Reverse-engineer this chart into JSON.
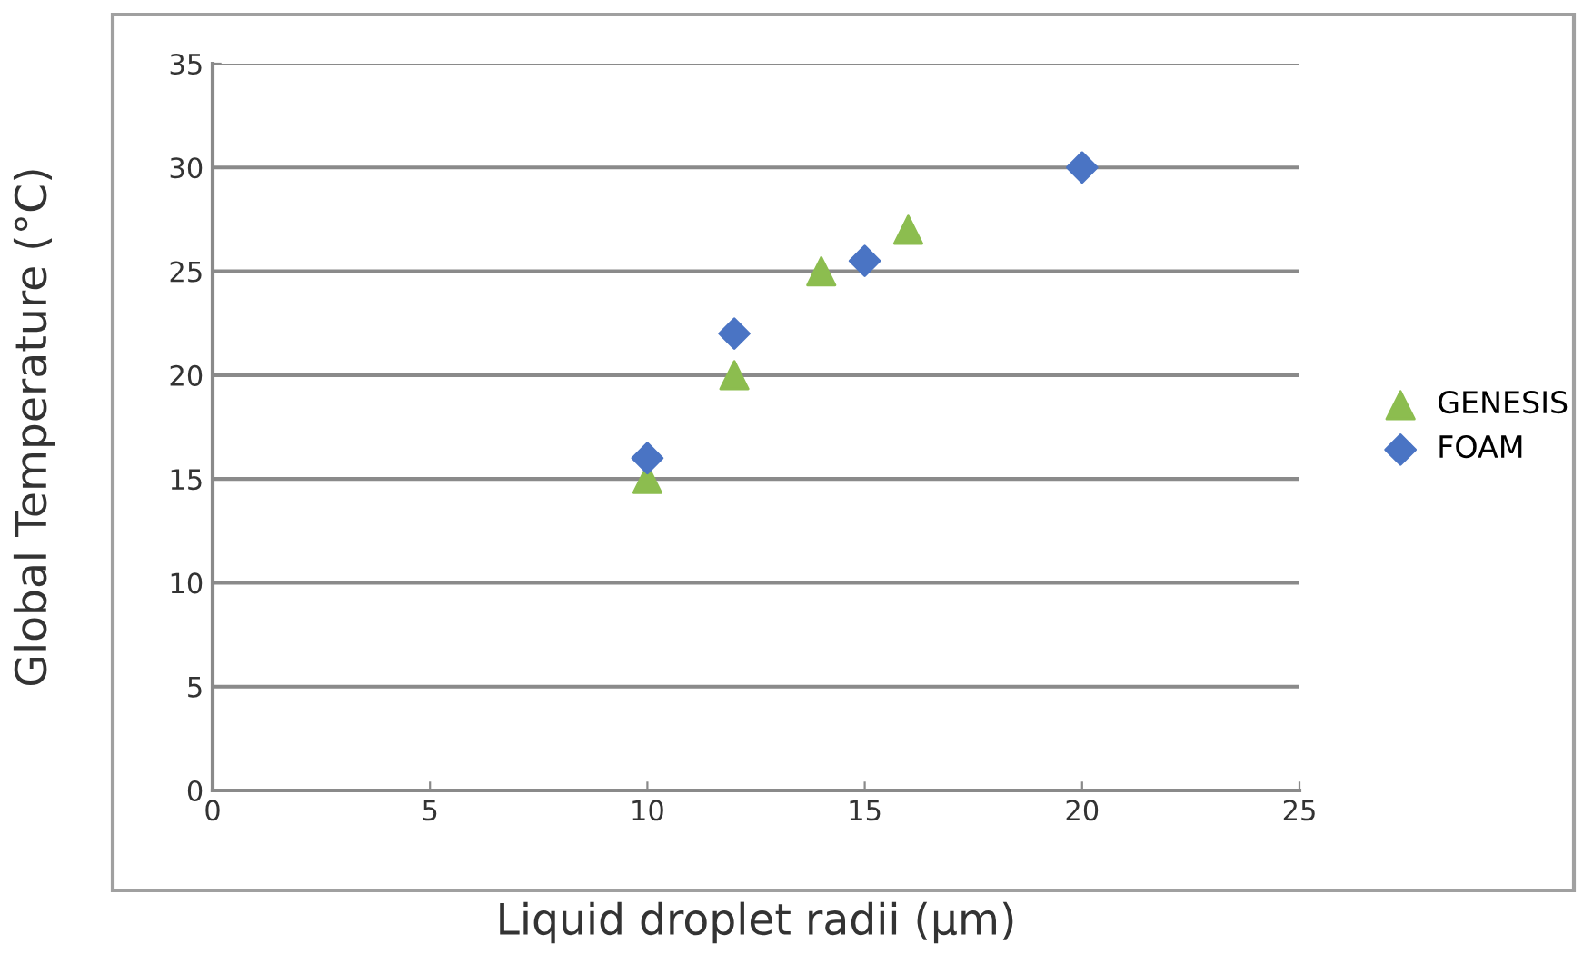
{
  "chart_data": {
    "type": "scatter",
    "xlabel": "Liquid droplet radii (µm)",
    "ylabel": "Global Temperature (°C)",
    "series": [
      {
        "name": "GENESIS",
        "color": "#8cbd4f",
        "marker": "triangle",
        "x": [
          10,
          12,
          14,
          16
        ],
        "values": [
          15,
          20,
          25,
          27
        ]
      },
      {
        "name": "FOAM",
        "color": "#4a74c4",
        "marker": "diamond",
        "x": [
          10,
          12,
          15,
          20
        ],
        "values": [
          16,
          22,
          25.5,
          30
        ]
      }
    ],
    "xlim": [
      0,
      25
    ],
    "xticks": [
      0,
      5,
      10,
      15,
      20,
      25
    ],
    "ylim": [
      0,
      35
    ],
    "yticks": [
      0,
      5,
      10,
      15,
      20,
      25,
      30,
      35
    ],
    "grid": "y",
    "legend": "right"
  }
}
